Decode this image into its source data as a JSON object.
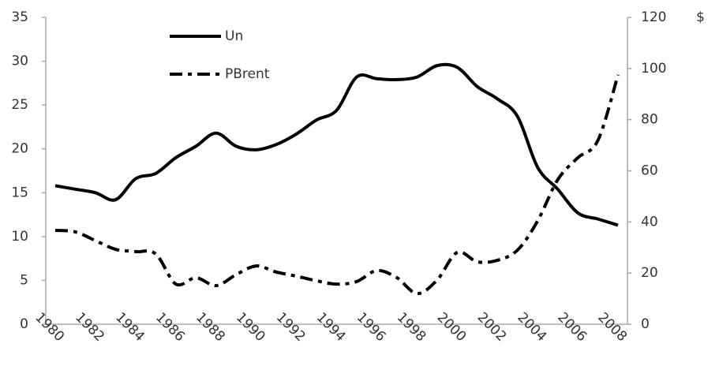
{
  "chart_data": {
    "type": "line",
    "y2label": "$",
    "categories": [
      "1980",
      null,
      "1982",
      null,
      "1984",
      null,
      "1986",
      null,
      "1988",
      null,
      "1990",
      null,
      "1992",
      null,
      "1994",
      null,
      "1996",
      null,
      "1998",
      null,
      "2000",
      null,
      "2002",
      null,
      "2004",
      null,
      "2006",
      null,
      "2008"
    ],
    "series": [
      {
        "name": "Un",
        "color": "#000000",
        "dash": "solid",
        "values": [
          15.8,
          15.4,
          15.0,
          14.2,
          16.6,
          17.2,
          19.0,
          20.3,
          21.8,
          20.3,
          19.9,
          20.5,
          21.7,
          23.3,
          24.4,
          28.2,
          28.0,
          27.9,
          28.2,
          29.5,
          29.3,
          27.1,
          25.7,
          23.7,
          17.9,
          15.4,
          12.7,
          12.0,
          11.3
        ]
      },
      {
        "name": "PBrent",
        "color": "#000000",
        "dash": "dash-dot",
        "axis": "y2",
        "values": [
          36.7,
          36.1,
          32.7,
          29.3,
          28.4,
          27.5,
          15.7,
          18.2,
          15.1,
          19.4,
          22.8,
          20.4,
          18.8,
          17.0,
          15.7,
          16.7,
          21.0,
          18.2,
          12.0,
          17.3,
          28.1,
          24.4,
          25.0,
          29.0,
          40.4,
          56.5,
          65.1,
          71.9,
          97.5
        ]
      }
    ],
    "ylim": [
      0,
      35
    ],
    "yticks": [
      0,
      5,
      10,
      15,
      20,
      25,
      30,
      35
    ],
    "y2lim": [
      0,
      120
    ],
    "y2ticks": [
      0,
      20,
      40,
      60,
      80,
      100,
      120
    ],
    "legend": "top-left",
    "grid": false
  }
}
